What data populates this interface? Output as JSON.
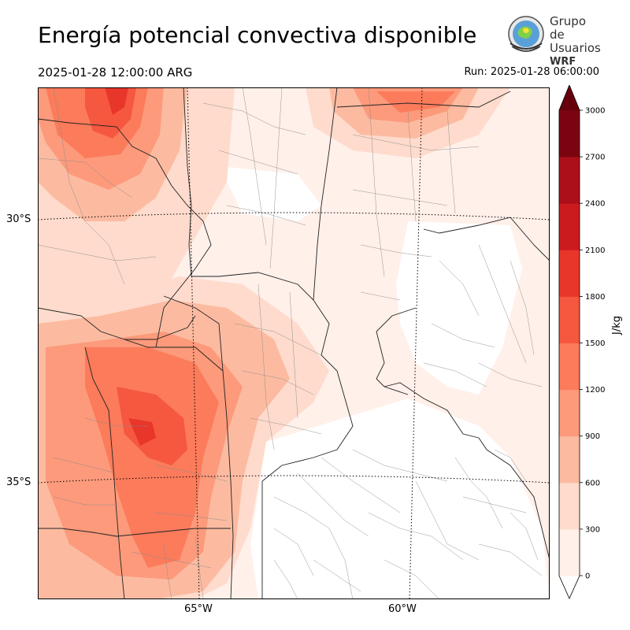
{
  "title": "Energía potencial convectiva disponible",
  "valid_time": "2025-01-28 12:00:00 ARG",
  "run_time": "Run: 2025-01-28 06:00:00",
  "logo": {
    "line1": "Grupo de",
    "line2": "Usuarios",
    "line3": "WRF"
  },
  "lat_labels": [
    "30°S",
    "35°S"
  ],
  "lon_labels": [
    "65°W",
    "60°W"
  ],
  "colorbar": {
    "unit": "J/kg",
    "ticks": [
      "0",
      "300",
      "600",
      "900",
      "1200",
      "1500",
      "1800",
      "2100",
      "2400",
      "2700",
      "3000"
    ],
    "colors": [
      "#fff0ea",
      "#fedbcc",
      "#fcbba1",
      "#fc9a7b",
      "#fb7b5b",
      "#f5573f",
      "#e8362a",
      "#cc1b1f",
      "#ad0f1a",
      "#7a0510"
    ],
    "extend_color": "#67000d"
  }
}
